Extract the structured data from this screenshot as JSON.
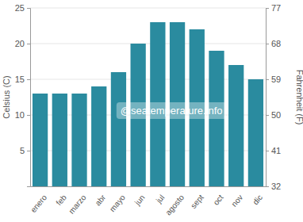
{
  "chart_data": {
    "type": "bar",
    "categories": [
      "enero",
      "feb",
      "marzo",
      "abr",
      "mayo",
      "jun",
      "jul",
      "agosto",
      "sept",
      "oct",
      "nov",
      "dic"
    ],
    "values": [
      13,
      13,
      13,
      14,
      16,
      20,
      23,
      23,
      22,
      19,
      17,
      15
    ],
    "color": "#2a8b9f",
    "ylim": [
      0,
      25
    ],
    "yticks": [
      5,
      10,
      15,
      20,
      25
    ],
    "y2lim": [
      32,
      77
    ],
    "y2ticks": [
      32,
      41,
      50,
      59,
      68,
      77
    ],
    "y_label": "Celsius (C)",
    "y2_label": "Fahrenheit (F)",
    "annotation": "@seatemperature.info",
    "grid": true
  }
}
